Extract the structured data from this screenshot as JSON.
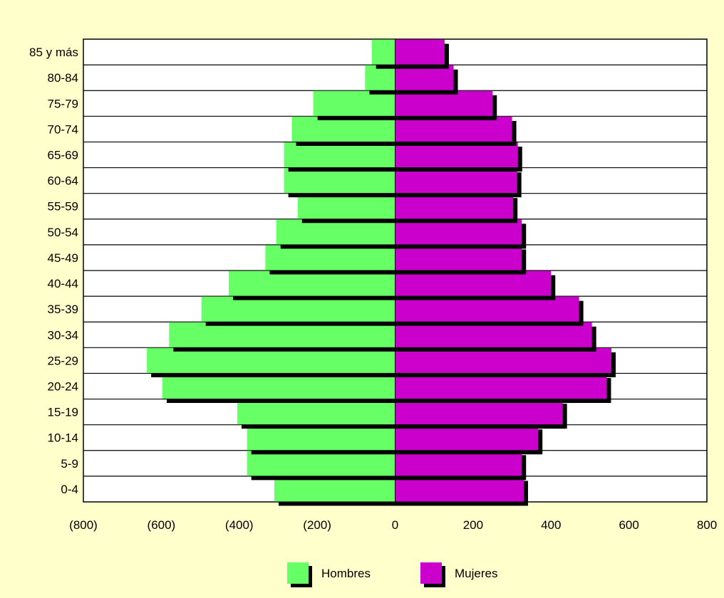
{
  "chart_data": {
    "type": "bar",
    "orientation": "horizontal",
    "layout": "population-pyramid",
    "categories": [
      "0-4",
      "5-9",
      "10-14",
      "15-19",
      "20-24",
      "25-29",
      "30-34",
      "35-39",
      "40-44",
      "45-49",
      "50-54",
      "55-59",
      "60-64",
      "65-69",
      "70-74",
      "75-79",
      "80-84",
      "85 y más"
    ],
    "series": [
      {
        "name": "Hombres",
        "color": "#66ff66",
        "values": [
          -310,
          -380,
          -380,
          -405,
          -597,
          -637,
          -580,
          -497,
          -427,
          -333,
          -305,
          -250,
          -285,
          -285,
          -265,
          -210,
          -77,
          -60
        ]
      },
      {
        "name": "Mujeres",
        "color": "#cc00cc",
        "values": [
          330,
          325,
          367,
          430,
          543,
          555,
          505,
          472,
          400,
          325,
          325,
          303,
          313,
          315,
          300,
          250,
          150,
          127
        ]
      }
    ],
    "xlim": [
      -800,
      800
    ],
    "xticks": [
      {
        "value": -800,
        "label": "(800)"
      },
      {
        "value": -600,
        "label": "(600)"
      },
      {
        "value": -400,
        "label": "(400)"
      },
      {
        "value": -200,
        "label": "(200)"
      },
      {
        "value": 0,
        "label": "0"
      },
      {
        "value": 200,
        "label": "200"
      },
      {
        "value": 400,
        "label": "400"
      },
      {
        "value": 600,
        "label": "600"
      },
      {
        "value": 800,
        "label": "800"
      }
    ],
    "grid": "horizontal",
    "legend_position": "bottom",
    "plot_background": "#ffffff",
    "page_background": "#ffffcc"
  }
}
